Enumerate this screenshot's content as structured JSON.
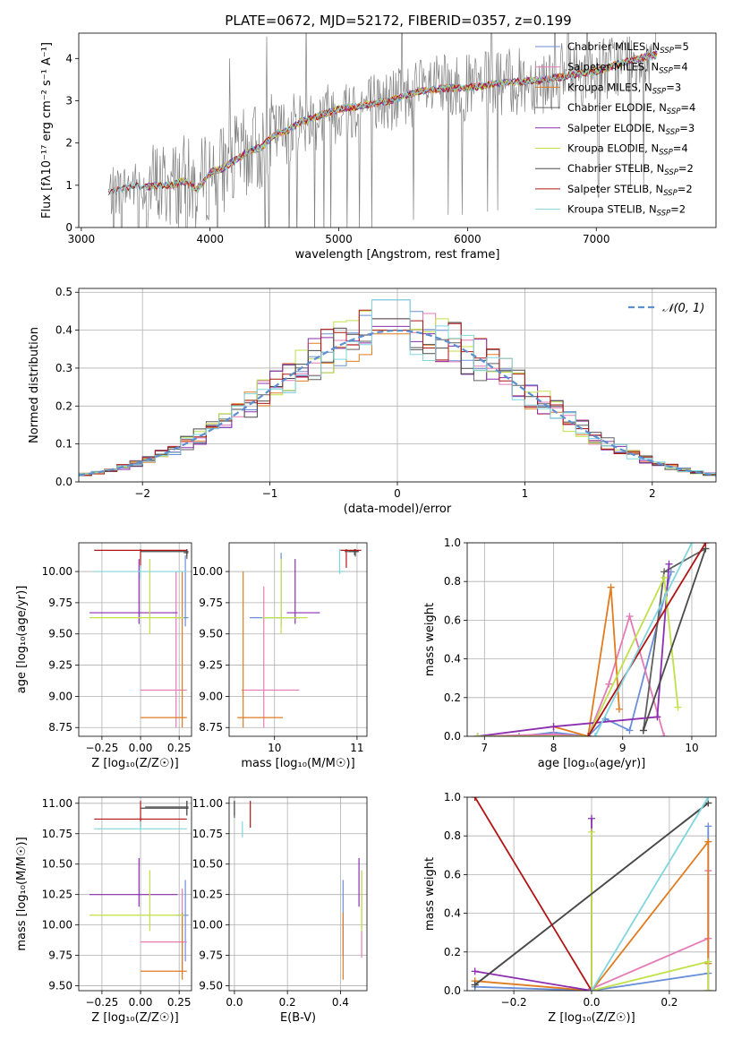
{
  "figure": {
    "title": "PLATE=0672, MJD=52172, FIBERID=0357, z=0.199"
  },
  "colors": [
    "#6a8fd9",
    "#e57ab5",
    "#e07b20",
    "#606060",
    "#8b2eb0",
    "#bfe14a",
    "#4a4a4a",
    "#b01515",
    "#7fd6dc"
  ],
  "models": [
    {
      "name": "Chabrier MILES",
      "nssp": 5
    },
    {
      "name": "Salpeter MILES",
      "nssp": 4
    },
    {
      "name": "Kroupa MILES",
      "nssp": 3
    },
    {
      "name": "Chabrier ELODIE",
      "nssp": 4
    },
    {
      "name": "Salpeter ELODIE",
      "nssp": 3
    },
    {
      "name": "Kroupa ELODIE",
      "nssp": 4
    },
    {
      "name": "Chabrier STELIB",
      "nssp": 2
    },
    {
      "name": "Salpeter STELIB",
      "nssp": 2
    },
    {
      "name": "Kroupa STELIB",
      "nssp": 2
    }
  ],
  "legend_nssp_label": "N",
  "legend_nssp_sub": "SSP",
  "chart_data": [
    {
      "id": "spectrum",
      "type": "line",
      "xlabel": "wavelength [Angstrom, rest frame]",
      "ylabel": "Flux [fλ10⁻¹⁷ erg cm⁻² s⁻¹ A⁻¹]",
      "xlim": [
        2980,
        7930
      ],
      "ylim": [
        0,
        4.6
      ],
      "xticks": [
        3000,
        4000,
        5000,
        6000,
        7000
      ],
      "yticks": [
        0,
        1,
        2,
        3,
        4
      ],
      "grid": false,
      "legend": "top-right",
      "data_range": [
        3210,
        7480
      ],
      "model_knots": {
        "x": [
          3210,
          3300,
          3400,
          3500,
          3600,
          3700,
          3800,
          3900,
          4000,
          4100,
          4200,
          4300,
          4400,
          4500,
          4600,
          4700,
          4800,
          4900,
          5000,
          5200,
          5400,
          5600,
          5800,
          6000,
          6200,
          6400,
          6600,
          6800,
          7000,
          7200,
          7480
        ],
        "y": [
          0.8,
          0.9,
          1.0,
          0.95,
          1.0,
          1.0,
          1.1,
          0.9,
          1.3,
          1.4,
          1.6,
          1.8,
          1.9,
          2.2,
          2.3,
          2.5,
          2.6,
          2.7,
          2.8,
          2.9,
          3.0,
          3.2,
          3.3,
          3.3,
          3.4,
          3.45,
          3.5,
          3.6,
          3.7,
          3.9,
          4.1
        ]
      }
    },
    {
      "id": "residuals",
      "type": "histogram",
      "xlabel": "(data-model)/error",
      "ylabel": "Normed distribution",
      "xlim": [
        -2.5,
        2.5
      ],
      "ylim": [
        0,
        0.51
      ],
      "xticks": [
        -2,
        -1,
        0,
        1,
        2
      ],
      "yticks": [
        0.0,
        0.1,
        0.2,
        0.3,
        0.4,
        0.5
      ],
      "grid": true,
      "legend": "top-right",
      "reference_label": "𝒩(0, 1)",
      "reference_color": "#5b8fd0",
      "bin_width": 0.1,
      "peak_values": [
        0.48,
        0.43,
        0.39,
        0.4,
        0.41,
        0.4,
        0.43,
        0.4,
        0.48
      ]
    },
    {
      "id": "age-vs-Z",
      "type": "errorbar",
      "xlabel": "Z [log₁₀(Z/Z☉)]",
      "ylabel": "age  [log₁₀(age/yr)]",
      "xlim": [
        -0.4,
        0.33
      ],
      "ylim": [
        8.68,
        10.23
      ],
      "xticks": [
        -0.25,
        0.0,
        0.25
      ],
      "yticks": [
        8.75,
        9.0,
        9.25,
        9.5,
        9.75,
        10.0
      ],
      "grid": true,
      "points": [
        {
          "m": 0,
          "x": 0.29,
          "y": 9.63,
          "xl": 0.23,
          "xh": 0.31,
          "yl": 9.56,
          "yh": 10.13
        },
        {
          "m": 1,
          "x": 0.23,
          "y": 9.05,
          "xl": 0.0,
          "xh": 0.3,
          "yl": 8.75,
          "yh": 10.0
        },
        {
          "m": 2,
          "x": 0.27,
          "y": 8.83,
          "xl": 0.0,
          "xh": 0.3,
          "yl": 8.75,
          "yh": 10.0
        },
        {
          "m": 3,
          "x": 0.3,
          "y": 10.15,
          "xl": 0.28,
          "xh": 0.31,
          "yl": 10.1,
          "yh": 10.18
        },
        {
          "m": 4,
          "x": -0.01,
          "y": 9.67,
          "xl": -0.33,
          "xh": 0.24,
          "yl": 9.58,
          "yh": 10.1
        },
        {
          "m": 5,
          "x": 0.06,
          "y": 9.63,
          "xl": -0.33,
          "xh": 0.28,
          "yl": 9.5,
          "yh": 10.1
        },
        {
          "m": 6,
          "x": 0.3,
          "y": 10.16,
          "xl": 0.0,
          "xh": 0.31,
          "yl": 10.12,
          "yh": 10.18
        },
        {
          "m": 7,
          "x": 0.0,
          "y": 10.17,
          "xl": -0.3,
          "xh": 0.3,
          "yl": 10.03,
          "yh": 10.18
        },
        {
          "m": 8,
          "x": 0.0,
          "y": 10.0,
          "xl": -0.3,
          "xh": 0.3,
          "yl": 9.94,
          "yh": 10.05
        }
      ]
    },
    {
      "id": "age-vs-mass",
      "type": "errorbar",
      "xlabel": "mass [log₁₀(M/M☉)]",
      "ylabel": "",
      "xlim": [
        9.45,
        11.12
      ],
      "ylim": [
        8.68,
        10.23
      ],
      "xticks": [
        10,
        11
      ],
      "yticks": [
        8.75,
        9.0,
        9.25,
        9.5,
        9.75,
        10.0
      ],
      "grid": true,
      "points": [
        {
          "m": 0,
          "x": 10.08,
          "y": 9.63,
          "xl": 9.7,
          "xh": 10.3,
          "yl": 9.56,
          "yh": 10.15
        },
        {
          "m": 1,
          "x": 9.87,
          "y": 9.05,
          "xl": 9.6,
          "xh": 10.3,
          "yl": 8.75,
          "yh": 9.88
        },
        {
          "m": 2,
          "x": 9.62,
          "y": 8.83,
          "xl": 9.55,
          "xh": 10.1,
          "yl": 8.75,
          "yh": 10.0
        },
        {
          "m": 3,
          "x": 10.98,
          "y": 10.16,
          "xl": 10.85,
          "xh": 11.02,
          "yl": 10.12,
          "yh": 10.18
        },
        {
          "m": 4,
          "x": 10.25,
          "y": 9.67,
          "xl": 10.15,
          "xh": 10.55,
          "yl": 9.58,
          "yh": 10.1
        },
        {
          "m": 5,
          "x": 10.08,
          "y": 9.63,
          "xl": 9.85,
          "xh": 10.4,
          "yl": 9.5,
          "yh": 10.1
        },
        {
          "m": 6,
          "x": 10.97,
          "y": 10.16,
          "xl": 10.9,
          "xh": 11.02,
          "yl": 10.13,
          "yh": 10.18
        },
        {
          "m": 7,
          "x": 10.87,
          "y": 10.17,
          "xl": 10.8,
          "xh": 11.05,
          "yl": 10.03,
          "yh": 10.18
        },
        {
          "m": 8,
          "x": 10.79,
          "y": 10.0,
          "xl": 10.77,
          "xh": 10.85,
          "yl": 9.98,
          "yh": 10.18
        }
      ]
    },
    {
      "id": "weight-vs-age",
      "type": "line",
      "xlabel": "age  [log₁₀(age/yr)]",
      "ylabel": "mass weight",
      "xlim": [
        6.75,
        10.35
      ],
      "ylim": [
        0,
        1.0
      ],
      "xticks": [
        7,
        8,
        9,
        10
      ],
      "yticks": [
        0.0,
        0.2,
        0.4,
        0.6,
        0.8,
        1.0
      ],
      "grid": true,
      "series": [
        {
          "m": 0,
          "x": [
            7.5,
            8.0,
            8.5,
            8.75,
            9.1,
            9.7
          ],
          "y": [
            0.0,
            0.02,
            0.0,
            0.09,
            0.03,
            0.85
          ]
        },
        {
          "m": 1,
          "x": [
            6.9,
            8.0,
            8.5,
            8.8,
            9.1,
            9.6
          ],
          "y": [
            0.0,
            0.01,
            0.0,
            0.27,
            0.62,
            0.0
          ]
        },
        {
          "m": 2,
          "x": [
            8.0,
            8.5,
            8.83,
            8.95
          ],
          "y": [
            0.05,
            0.0,
            0.77,
            0.14
          ]
        },
        {
          "m": 3,
          "x": [
            9.3,
            9.6,
            10.2
          ],
          "y": [
            0.03,
            0.85,
            0.97
          ]
        },
        {
          "m": 4,
          "x": [
            6.9,
            8.0,
            9.5,
            9.67
          ],
          "y": [
            0.0,
            0.05,
            0.1,
            0.89
          ]
        },
        {
          "m": 5,
          "x": [
            6.9,
            8.5,
            9.6,
            9.8
          ],
          "y": [
            0.0,
            0.0,
            0.82,
            0.15
          ]
        },
        {
          "m": 6,
          "x": [
            9.3,
            10.2
          ],
          "y": [
            0.03,
            0.97
          ]
        },
        {
          "m": 7,
          "x": [
            8.5,
            10.2
          ],
          "y": [
            0.0,
            1.0
          ]
        },
        {
          "m": 8,
          "x": [
            8.6,
            10.0
          ],
          "y": [
            0.0,
            1.0
          ]
        }
      ]
    },
    {
      "id": "mass-vs-Z",
      "type": "errorbar",
      "xlabel": "Z [log₁₀(Z/Z☉)]",
      "ylabel": "mass [log₁₀(M/M☉)]",
      "xlim": [
        -0.4,
        0.33
      ],
      "ylim": [
        9.46,
        11.05
      ],
      "xticks": [
        -0.25,
        0.0,
        0.25
      ],
      "yticks": [
        9.5,
        9.75,
        10.0,
        10.25,
        10.5,
        10.75,
        11.0
      ],
      "grid": true,
      "points": [
        {
          "m": 0,
          "x": 0.29,
          "y": 10.08,
          "xl": 0.23,
          "xh": 0.31,
          "yl": 9.7,
          "yh": 10.37
        },
        {
          "m": 1,
          "x": 0.27,
          "y": 9.86,
          "xl": 0.0,
          "xh": 0.3,
          "yl": 9.6,
          "yh": 10.3
        },
        {
          "m": 2,
          "x": 0.27,
          "y": 9.62,
          "xl": 0.0,
          "xh": 0.3,
          "yl": 9.55,
          "yh": 10.1
        },
        {
          "m": 3,
          "x": 0.3,
          "y": 10.97,
          "xl": 0.03,
          "xh": 0.31,
          "yl": 10.9,
          "yh": 11.02
        },
        {
          "m": 4,
          "x": -0.01,
          "y": 10.25,
          "xl": -0.33,
          "xh": 0.24,
          "yl": 10.15,
          "yh": 10.55
        },
        {
          "m": 5,
          "x": 0.06,
          "y": 10.08,
          "xl": -0.33,
          "xh": 0.28,
          "yl": 9.95,
          "yh": 10.45
        },
        {
          "m": 6,
          "x": 0.3,
          "y": 10.96,
          "xl": 0.0,
          "xh": 0.31,
          "yl": 10.9,
          "yh": 11.02
        },
        {
          "m": 7,
          "x": 0.0,
          "y": 10.87,
          "xl": -0.3,
          "xh": 0.3,
          "yl": 10.8,
          "yh": 11.02
        },
        {
          "m": 8,
          "x": 0.0,
          "y": 10.79,
          "xl": -0.3,
          "xh": 0.3,
          "yl": 10.77,
          "yh": 10.85
        }
      ]
    },
    {
      "id": "mass-vs-EBV",
      "type": "errorbar",
      "xlabel": "E(B-V)",
      "ylabel": "",
      "xlim": [
        -0.02,
        0.5
      ],
      "ylim": [
        9.46,
        11.05
      ],
      "xticks": [
        0.0,
        0.2,
        0.4
      ],
      "yticks": [
        9.5,
        9.75,
        10.0,
        10.25,
        10.5,
        10.75,
        11.0
      ],
      "grid": true,
      "points": [
        {
          "m": 0,
          "x": 0.41,
          "y": 10.08,
          "xl": 0.41,
          "xh": 0.41,
          "yl": 9.75,
          "yh": 10.37
        },
        {
          "m": 1,
          "x": 0.48,
          "y": 9.86,
          "xl": 0.48,
          "xh": 0.48,
          "yl": 9.73,
          "yh": 10.45
        },
        {
          "m": 2,
          "x": 0.41,
          "y": 9.62,
          "xl": 0.41,
          "xh": 0.41,
          "yl": 9.55,
          "yh": 10.1
        },
        {
          "m": 3,
          "x": 0.0,
          "y": 10.97,
          "xl": 0.0,
          "xh": 0.0,
          "yl": 10.88,
          "yh": 11.02
        },
        {
          "m": 4,
          "x": 0.47,
          "y": 10.25,
          "xl": 0.47,
          "xh": 0.47,
          "yl": 10.15,
          "yh": 10.55
        },
        {
          "m": 5,
          "x": 0.48,
          "y": 10.08,
          "xl": 0.48,
          "xh": 0.48,
          "yl": 9.95,
          "yh": 10.45
        },
        {
          "m": 6,
          "x": 0.0,
          "y": 10.96,
          "xl": 0.0,
          "xh": 0.0,
          "yl": 10.9,
          "yh": 11.02
        },
        {
          "m": 7,
          "x": 0.06,
          "y": 10.87,
          "xl": 0.06,
          "xh": 0.06,
          "yl": 10.8,
          "yh": 11.02
        },
        {
          "m": 8,
          "x": 0.03,
          "y": 10.79,
          "xl": 0.03,
          "xh": 0.03,
          "yl": 10.72,
          "yh": 10.85
        }
      ]
    },
    {
      "id": "weight-vs-Z",
      "type": "line",
      "xlabel": "Z [log₁₀(Z/Z☉)]",
      "ylabel": "mass weight",
      "xlim": [
        -0.32,
        0.32
      ],
      "ylim": [
        0,
        1.0
      ],
      "xticks": [
        -0.2,
        0.0,
        0.2
      ],
      "yticks": [
        0.0,
        0.2,
        0.4,
        0.6,
        0.8,
        1.0
      ],
      "grid": true,
      "series": [
        {
          "m": 0,
          "x": [
            -0.3,
            0.0,
            0.3,
            0.3,
            0.3
          ],
          "y": [
            0.02,
            0.0,
            0.09,
            0.85,
            0.0
          ]
        },
        {
          "m": 1,
          "x": [
            0.0,
            0.3,
            0.3,
            0.3
          ],
          "y": [
            0.01,
            0.27,
            0.62,
            0.0
          ]
        },
        {
          "m": 2,
          "x": [
            -0.3,
            0.0,
            0.3,
            0.3
          ],
          "y": [
            0.05,
            0.0,
            0.77,
            0.14
          ]
        },
        {
          "m": 3,
          "x": [
            -0.3,
            0.3
          ],
          "y": [
            0.03,
            0.97
          ]
        },
        {
          "m": 4,
          "x": [
            -0.3,
            0.0,
            0.0
          ],
          "y": [
            0.1,
            0.0,
            0.89
          ]
        },
        {
          "m": 5,
          "x": [
            0.0,
            0.0,
            0.3,
            0.3
          ],
          "y": [
            0.82,
            0.0,
            0.15,
            0.0
          ]
        },
        {
          "m": 6,
          "x": [
            -0.3,
            0.3
          ],
          "y": [
            0.03,
            0.97
          ]
        },
        {
          "m": 7,
          "x": [
            -0.3,
            0.0
          ],
          "y": [
            1.0,
            0.0
          ]
        },
        {
          "m": 8,
          "x": [
            0.0,
            0.3
          ],
          "y": [
            0.0,
            1.0
          ]
        }
      ]
    }
  ]
}
